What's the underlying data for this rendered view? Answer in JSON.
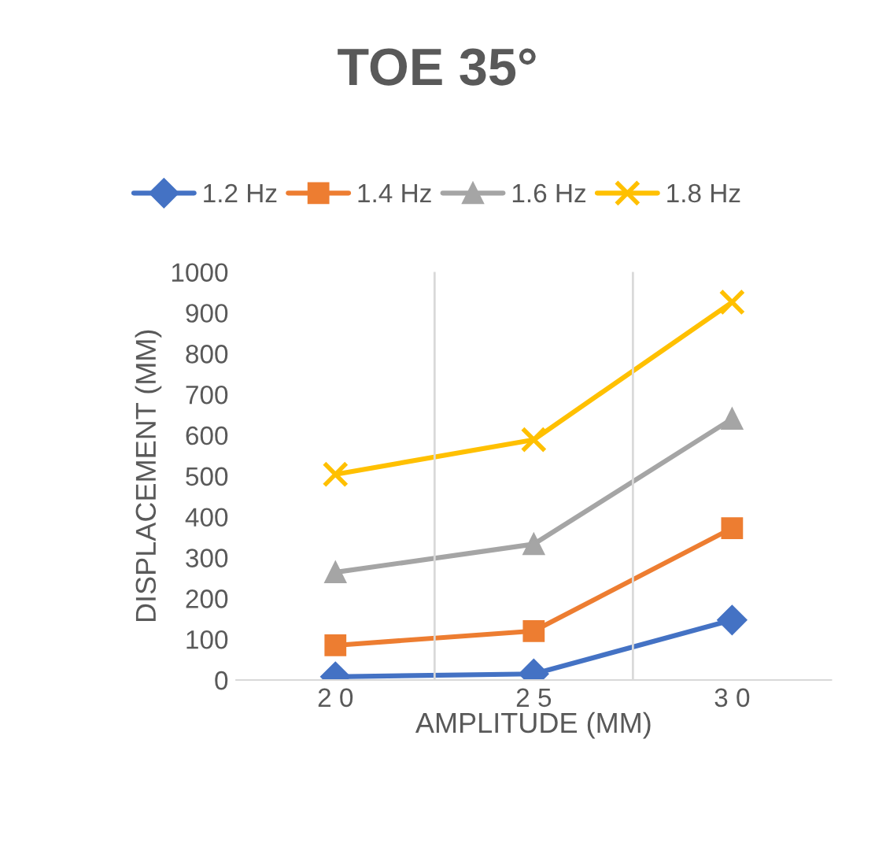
{
  "chart_data": {
    "type": "line",
    "title": "TOE 35°",
    "xlabel": "AMPLITUDE (MM)",
    "ylabel": "DISPLACEMENT (MM)",
    "categories": [
      "2 0",
      "2 5",
      "3 0"
    ],
    "series": [
      {
        "name": "1.2 Hz",
        "color": "#4472c4",
        "marker": "diamond",
        "values": [
          8,
          15,
          147
        ]
      },
      {
        "name": "1.4 Hz",
        "color": "#ed7d31",
        "marker": "square",
        "values": [
          85,
          120,
          372
        ]
      },
      {
        "name": "1.6 Hz",
        "color": "#a5a5a5",
        "marker": "triangle",
        "values": [
          264,
          333,
          640
        ]
      },
      {
        "name": "1.8 Hz",
        "color": "#ffc000",
        "marker": "cross",
        "values": [
          504,
          589,
          926
        ]
      }
    ],
    "ylim": [
      0,
      1000
    ],
    "yticks": [
      0,
      100,
      200,
      300,
      400,
      500,
      600,
      700,
      800,
      900,
      1000
    ],
    "grid": "x",
    "legend": "top",
    "line_style": "solid"
  }
}
